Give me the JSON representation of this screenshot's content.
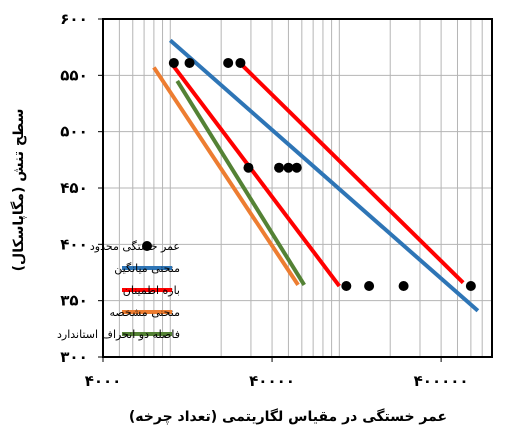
{
  "chart_data": {
    "type": "scatter",
    "title": "",
    "xlabel": "عمر خستگی در مقیاس لگاریتمی (تعداد چرخه)",
    "ylabel": "سطح تنش (مگاپاسکال)",
    "x_scale": "log",
    "xlim": [
      4000,
      800000
    ],
    "ylim": [
      300,
      600
    ],
    "x_ticks": [
      4000,
      40000,
      400000
    ],
    "x_tick_labels": [
      "۴۰۰۰",
      "۴۰۰۰۰",
      "۴۰۰۰۰۰"
    ],
    "y_ticks": [
      300,
      350,
      400,
      450,
      500,
      550,
      600
    ],
    "y_tick_labels": [
      "۳۰۰",
      "۳۵۰",
      "۴۰۰",
      "۴۵۰",
      "۵۰۰",
      "۵۵۰",
      "۶۰۰"
    ],
    "grid": true,
    "legend_position": "bottom-left",
    "series": [
      {
        "name": "عمر خستگی محدود",
        "kind": "points",
        "color": "#000000",
        "points": [
          {
            "x": 10500,
            "y": 561
          },
          {
            "x": 13000,
            "y": 561
          },
          {
            "x": 22000,
            "y": 561
          },
          {
            "x": 26000,
            "y": 561
          },
          {
            "x": 29000,
            "y": 468
          },
          {
            "x": 44000,
            "y": 468
          },
          {
            "x": 50000,
            "y": 468
          },
          {
            "x": 56000,
            "y": 468
          },
          {
            "x": 110000,
            "y": 363
          },
          {
            "x": 150000,
            "y": 363
          },
          {
            "x": 240000,
            "y": 363
          },
          {
            "x": 600000,
            "y": 363
          }
        ]
      },
      {
        "name": "منحنی میانگین",
        "kind": "line",
        "color": "#2e75b6",
        "x": [
          10000,
          660000
        ],
        "y": [
          581,
          341
        ]
      },
      {
        "name": "بازه اطمینان",
        "kind": "line",
        "color": "#ff0000",
        "x": [
          10000,
          100000
        ],
        "y": [
          562,
          363
        ]
      },
      {
        "name": "بازه اطمینان",
        "kind": "line",
        "color": "#ff0000",
        "x": [
          25000,
          540000
        ],
        "y": [
          563,
          366
        ]
      },
      {
        "name": "منحنی مشخصه",
        "kind": "line",
        "color": "#ed7d31",
        "x": [
          8000,
          57000
        ],
        "y": [
          557,
          364
        ]
      },
      {
        "name": "فاصله دو انحراف استاندارد",
        "kind": "line",
        "color": "#548235",
        "x": [
          11000,
          62000
        ],
        "y": [
          545,
          364
        ]
      }
    ],
    "legend": [
      {
        "label": "عمر خستگی محدود",
        "marker": "point",
        "color": "#000000"
      },
      {
        "label": "منحنی میانگین",
        "marker": "line",
        "color": "#2e75b6"
      },
      {
        "label": "بازه اطمینان",
        "marker": "line",
        "color": "#ff0000"
      },
      {
        "label": "منحنی مشخصه",
        "marker": "line",
        "color": "#ed7d31"
      },
      {
        "label": "فاصله دو انحراف استاندارد",
        "marker": "line",
        "color": "#548235"
      }
    ]
  }
}
